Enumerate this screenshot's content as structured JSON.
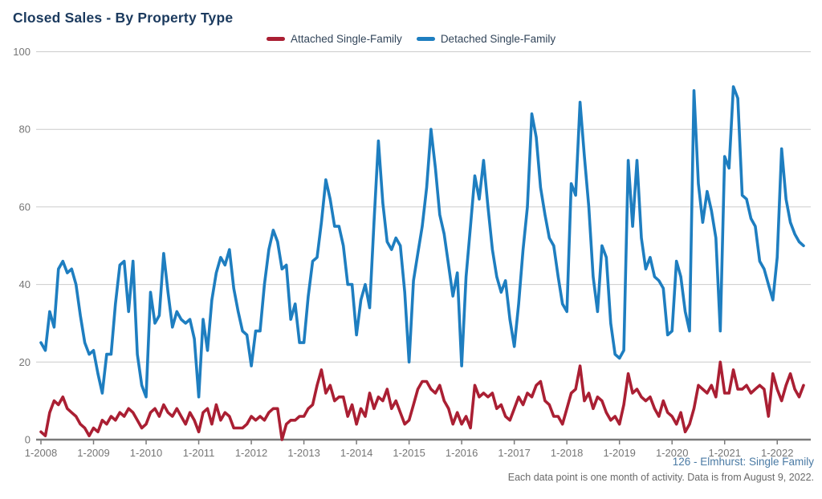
{
  "title": "Closed Sales - By Property Type",
  "legend": {
    "items": [
      {
        "label": "Attached Single-Family",
        "color": "#aa1f33"
      },
      {
        "label": "Detached Single-Family",
        "color": "#1e7ec0"
      }
    ]
  },
  "footer": {
    "source_label": "126 - Elmhurst: Single Family",
    "note": "Each data point is one month of activity. Data is from August 9, 2022."
  },
  "chart_data": {
    "type": "line",
    "title": "Closed Sales - By Property Type",
    "x_frequency": "monthly",
    "x_start": "1-2008",
    "x_end": "7-2022",
    "x_tick_labels": [
      "1-2008",
      "1-2009",
      "1-2010",
      "1-2011",
      "1-2012",
      "1-2013",
      "1-2014",
      "1-2015",
      "1-2016",
      "1-2017",
      "1-2018",
      "1-2019",
      "1-2020",
      "1-2021",
      "1-2022"
    ],
    "y_ticks": [
      0,
      20,
      40,
      60,
      80,
      100
    ],
    "ylim": [
      0,
      100
    ],
    "grid": true,
    "legend_position": "top",
    "axis_color": "#7a7a7a",
    "grid_color": "#cccccc",
    "tick_label_color": "#757575",
    "series": [
      {
        "name": "Attached Single-Family",
        "color": "#aa1f33",
        "values": [
          2,
          1,
          7,
          10,
          9,
          11,
          8,
          7,
          6,
          4,
          3,
          1,
          3,
          2,
          5,
          4,
          6,
          5,
          7,
          6,
          8,
          7,
          5,
          3,
          4,
          7,
          8,
          6,
          9,
          7,
          6,
          8,
          6,
          4,
          7,
          5,
          2,
          7,
          8,
          4,
          9,
          5,
          7,
          6,
          3,
          3,
          3,
          4,
          6,
          5,
          6,
          5,
          7,
          8,
          8,
          0,
          4,
          5,
          5,
          6,
          6,
          8,
          9,
          14,
          18,
          12,
          14,
          10,
          11,
          11,
          6,
          9,
          4,
          8,
          6,
          12,
          8,
          11,
          10,
          13,
          8,
          10,
          7,
          4,
          5,
          9,
          13,
          15,
          15,
          13,
          12,
          14,
          10,
          8,
          4,
          7,
          4,
          6,
          3,
          14,
          11,
          12,
          11,
          12,
          8,
          9,
          6,
          5,
          8,
          11,
          9,
          12,
          11,
          14,
          15,
          10,
          9,
          6,
          6,
          4,
          8,
          12,
          13,
          19,
          10,
          12,
          8,
          11,
          10,
          7,
          5,
          6,
          4,
          9,
          17,
          12,
          13,
          11,
          10,
          11,
          8,
          6,
          10,
          7,
          6,
          4,
          7,
          2,
          4,
          8,
          14,
          13,
          12,
          14,
          11,
          20,
          12,
          12,
          18,
          13,
          13,
          14,
          12,
          13,
          14,
          13,
          6,
          17,
          13,
          10,
          14,
          17,
          13,
          11,
          14
        ]
      },
      {
        "name": "Detached Single-Family",
        "color": "#1e7ec0",
        "values": [
          25,
          23,
          33,
          29,
          44,
          46,
          43,
          44,
          40,
          32,
          25,
          22,
          23,
          17,
          12,
          22,
          22,
          35,
          45,
          46,
          33,
          46,
          22,
          14,
          11,
          38,
          30,
          32,
          48,
          38,
          29,
          33,
          31,
          30,
          31,
          26,
          11,
          31,
          23,
          36,
          43,
          47,
          45,
          49,
          39,
          33,
          28,
          27,
          19,
          28,
          28,
          40,
          49,
          54,
          51,
          44,
          45,
          31,
          35,
          25,
          25,
          37,
          46,
          47,
          56,
          67,
          62,
          55,
          55,
          50,
          40,
          40,
          27,
          36,
          40,
          34,
          56,
          77,
          61,
          51,
          49,
          52,
          50,
          38,
          20,
          41,
          48,
          55,
          65,
          80,
          70,
          58,
          53,
          45,
          37,
          43,
          19,
          42,
          55,
          68,
          62,
          72,
          60,
          49,
          42,
          38,
          41,
          31,
          24,
          35,
          49,
          60,
          84,
          78,
          65,
          58,
          52,
          50,
          42,
          35,
          33,
          66,
          63,
          87,
          73,
          60,
          42,
          33,
          50,
          47,
          30,
          22,
          21,
          23,
          72,
          55,
          72,
          52,
          44,
          47,
          42,
          41,
          39,
          27,
          28,
          46,
          42,
          33,
          28,
          90,
          66,
          56,
          64,
          59,
          52,
          28,
          73,
          70,
          91,
          88,
          63,
          62,
          57,
          55,
          46,
          44,
          40,
          36,
          47,
          75,
          62,
          56,
          53,
          51,
          50
        ]
      }
    ]
  }
}
